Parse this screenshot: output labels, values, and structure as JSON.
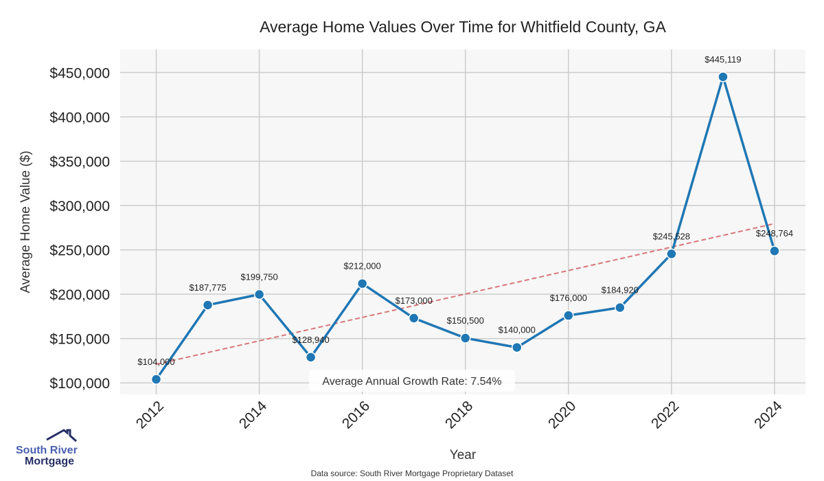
{
  "chart_data": {
    "type": "line",
    "title": "Average Home Values Over Time for Whitfield County, GA",
    "xlabel": "Year",
    "ylabel": "Average Home Value ($)",
    "x": [
      2012,
      2013,
      2014,
      2015,
      2016,
      2017,
      2018,
      2019,
      2020,
      2021,
      2022,
      2023,
      2024
    ],
    "series": [
      {
        "values": [
          104000,
          187775,
          199750,
          128940,
          212000,
          173000,
          150500,
          140000,
          176000,
          184920,
          245528,
          445119,
          248764
        ],
        "labels": [
          "$104,000",
          "$187,775",
          "$199,750",
          "$128,940",
          "$212,000",
          "$173,000",
          "$150,500",
          "$140,000",
          "$176,000",
          "$184,920",
          "$245,528",
          "$445,119",
          "$248,764"
        ],
        "color": "#1f77b4"
      }
    ],
    "trendline": {
      "x": [
        2012,
        2024
      ],
      "y": [
        121000,
        279600
      ],
      "color": "#d9777a",
      "style": "dashed"
    },
    "xticks": [
      2012,
      2014,
      2016,
      2018,
      2020,
      2022,
      2024
    ],
    "xtick_labels": [
      "2012",
      "2014",
      "2016",
      "2018",
      "2020",
      "2022",
      "2024"
    ],
    "yticks": [
      100000,
      150000,
      200000,
      250000,
      300000,
      350000,
      400000,
      450000
    ],
    "ytick_labels": [
      "$100,000",
      "$150,000",
      "$200,000",
      "$250,000",
      "$300,000",
      "$350,000",
      "$400,000",
      "$450,000"
    ],
    "xlim": [
      2011.3,
      2024.6
    ],
    "ylim": [
      87000,
      476000
    ],
    "grid": true,
    "annotation": "Average Annual Growth Rate: 7.54%",
    "source": "Data source: South River Mortgage Proprietary Dataset"
  },
  "logo": {
    "line1": "South River",
    "line2": "Mortgage"
  }
}
